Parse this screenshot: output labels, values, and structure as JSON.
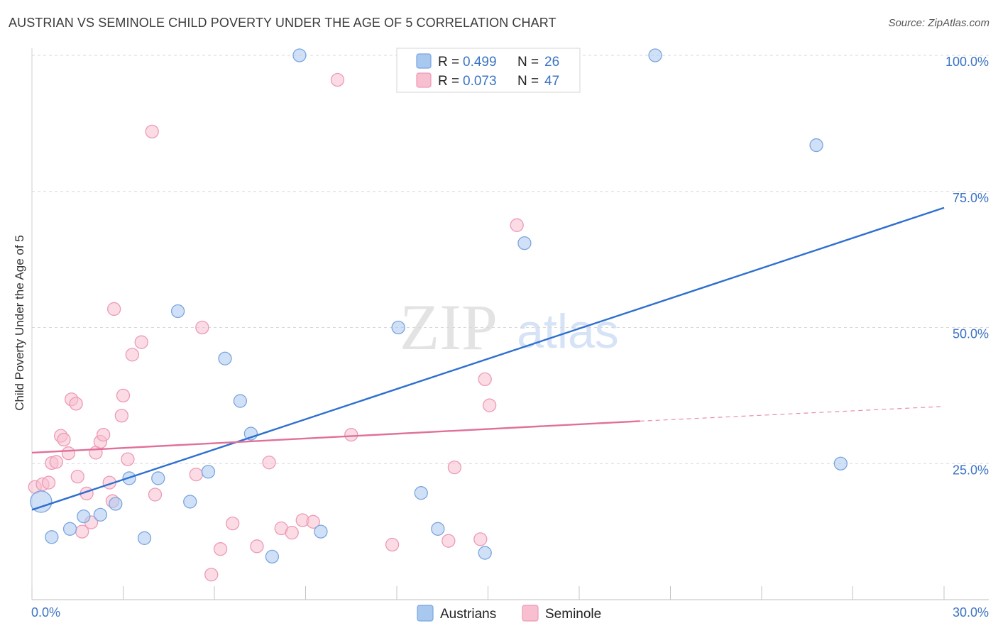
{
  "header": {
    "title": "AUSTRIAN VS SEMINOLE CHILD POVERTY UNDER THE AGE OF 5 CORRELATION CHART",
    "source": "Source: ZipAtlas.com"
  },
  "watermark": {
    "zip": "ZIP",
    "atlas": "atlas"
  },
  "colors": {
    "austrians_fill": "#a9c8f0",
    "austrians_stroke": "#7aa5df",
    "austrians_line": "#2e6fd0",
    "seminole_fill": "#f7bfd0",
    "seminole_stroke": "#ee99b5",
    "seminole_line": "#e0709a",
    "grid": "#d9d9d9",
    "axis_text": "#3b73c4"
  },
  "chart_data": {
    "type": "scatter",
    "title": "AUSTRIAN VS SEMINOLE CHILD POVERTY UNDER THE AGE OF 5 CORRELATION CHART",
    "xlabel": "",
    "ylabel": "Child Poverty Under the Age of 5",
    "xlim": [
      0,
      30
    ],
    "ylim": [
      0,
      100
    ],
    "x_tick_labels": [
      "0.0%",
      "30.0%"
    ],
    "y_ticks": [
      25,
      50,
      75,
      100
    ],
    "y_tick_labels": [
      "25.0%",
      "50.0%",
      "75.0%",
      "100.0%"
    ],
    "legend_position": "top-center",
    "legend": [
      {
        "r_label": "R = ",
        "r_value": "0.499",
        "n_label": "N = ",
        "n_value": "26"
      },
      {
        "r_label": "R = ",
        "r_value": "0.073",
        "n_label": "N = ",
        "n_value": "47"
      }
    ],
    "series": [
      {
        "name": "Austrians",
        "trend": {
          "x0": 0,
          "y0": 16.5,
          "x1": 30,
          "y1": 72
        },
        "points": [
          [
            0.3,
            18,
            30
          ],
          [
            0.65,
            11.5,
            18
          ],
          [
            1.25,
            13,
            18
          ],
          [
            1.7,
            15.3,
            18
          ],
          [
            2.25,
            15.6,
            18
          ],
          [
            2.75,
            17.6,
            18
          ],
          [
            3.2,
            22.3,
            18
          ],
          [
            3.7,
            11.3,
            18
          ],
          [
            4.15,
            22.3,
            18
          ],
          [
            4.8,
            53,
            18
          ],
          [
            5.2,
            18,
            18
          ],
          [
            5.8,
            23.5,
            18
          ],
          [
            6.35,
            44.3,
            18
          ],
          [
            6.85,
            36.5,
            18
          ],
          [
            7.2,
            30.5,
            18
          ],
          [
            7.9,
            7.9,
            18
          ],
          [
            8.8,
            100,
            18
          ],
          [
            9.5,
            12.5,
            18
          ],
          [
            12.05,
            50,
            18
          ],
          [
            12.8,
            19.6,
            18
          ],
          [
            13.35,
            13,
            18
          ],
          [
            14.9,
            8.6,
            18
          ],
          [
            16.2,
            65.5,
            18
          ],
          [
            20.5,
            100,
            18
          ],
          [
            25.8,
            83.5,
            18
          ],
          [
            26.6,
            25,
            18
          ]
        ]
      },
      {
        "name": "Seminole",
        "trend": {
          "x0": 0,
          "y0": 27,
          "x1": 20,
          "y1": 32.8,
          "dash_to_x": 30,
          "dash_to_y": 35.5
        },
        "points": [
          [
            0.1,
            20.7,
            18
          ],
          [
            0.35,
            21.2,
            18
          ],
          [
            0.55,
            21.5,
            18
          ],
          [
            0.65,
            25.1,
            18
          ],
          [
            0.8,
            25.3,
            18
          ],
          [
            0.95,
            30.1,
            18
          ],
          [
            1.05,
            29.4,
            18
          ],
          [
            1.2,
            26.9,
            18
          ],
          [
            1.3,
            36.8,
            18
          ],
          [
            1.45,
            36,
            18
          ],
          [
            1.5,
            22.6,
            18
          ],
          [
            1.65,
            12.5,
            18
          ],
          [
            1.8,
            19.5,
            18
          ],
          [
            1.95,
            14.2,
            18
          ],
          [
            2.1,
            27,
            18
          ],
          [
            2.25,
            29,
            18
          ],
          [
            2.35,
            30.3,
            18
          ],
          [
            2.55,
            21.5,
            18
          ],
          [
            2.65,
            18.1,
            18
          ],
          [
            2.7,
            53.4,
            18
          ],
          [
            2.95,
            33.8,
            18
          ],
          [
            3.0,
            37.5,
            18
          ],
          [
            3.15,
            25.8,
            18
          ],
          [
            3.3,
            45,
            18
          ],
          [
            3.6,
            47.3,
            18
          ],
          [
            3.95,
            86,
            18
          ],
          [
            4.05,
            19.3,
            18
          ],
          [
            5.4,
            23,
            18
          ],
          [
            5.6,
            50,
            18
          ],
          [
            5.9,
            4.6,
            18
          ],
          [
            6.2,
            9.3,
            18
          ],
          [
            6.6,
            14,
            18
          ],
          [
            7.4,
            9.8,
            18
          ],
          [
            7.8,
            25.2,
            18
          ],
          [
            8.2,
            13.1,
            18
          ],
          [
            8.55,
            12.3,
            18
          ],
          [
            8.9,
            14.6,
            18
          ],
          [
            9.25,
            14.3,
            18
          ],
          [
            10.05,
            95.5,
            18
          ],
          [
            10.5,
            30.3,
            18
          ],
          [
            11.85,
            10.1,
            18
          ],
          [
            13.7,
            10.8,
            18
          ],
          [
            13.9,
            24.3,
            18
          ],
          [
            14.75,
            11.1,
            18
          ],
          [
            14.9,
            40.5,
            18
          ],
          [
            15.05,
            35.7,
            18
          ],
          [
            15.95,
            68.8,
            18
          ]
        ]
      }
    ]
  },
  "bottom_legend": {
    "austrians": "Austrians",
    "seminole": "Seminole"
  }
}
